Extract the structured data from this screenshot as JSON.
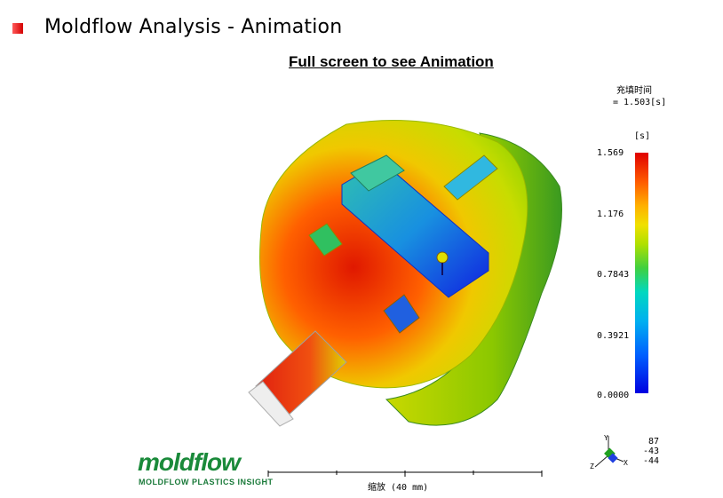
{
  "slide": {
    "title": "Moldflow Analysis - Animation",
    "subtitle": "Full screen to see Animation"
  },
  "legend": {
    "quantity": "充填时间",
    "current": "= 1.503[s]",
    "unit": "[s]",
    "ticks": [
      "1.569",
      "1.176",
      "0.7843",
      "0.3921",
      "0.0000"
    ]
  },
  "scale": {
    "label": "缩放 (40 mm)"
  },
  "logo": {
    "name": "moldflow",
    "tagline": "MOLDFLOW PLASTICS INSIGHT"
  },
  "triad": {
    "axes": [
      "Y",
      "Z",
      "X"
    ],
    "coords": [
      "87",
      "-43",
      "-44"
    ]
  },
  "colors": {
    "hot": "#e00000",
    "cold": "#0000e0",
    "brand_green": "#1a8a3a"
  }
}
